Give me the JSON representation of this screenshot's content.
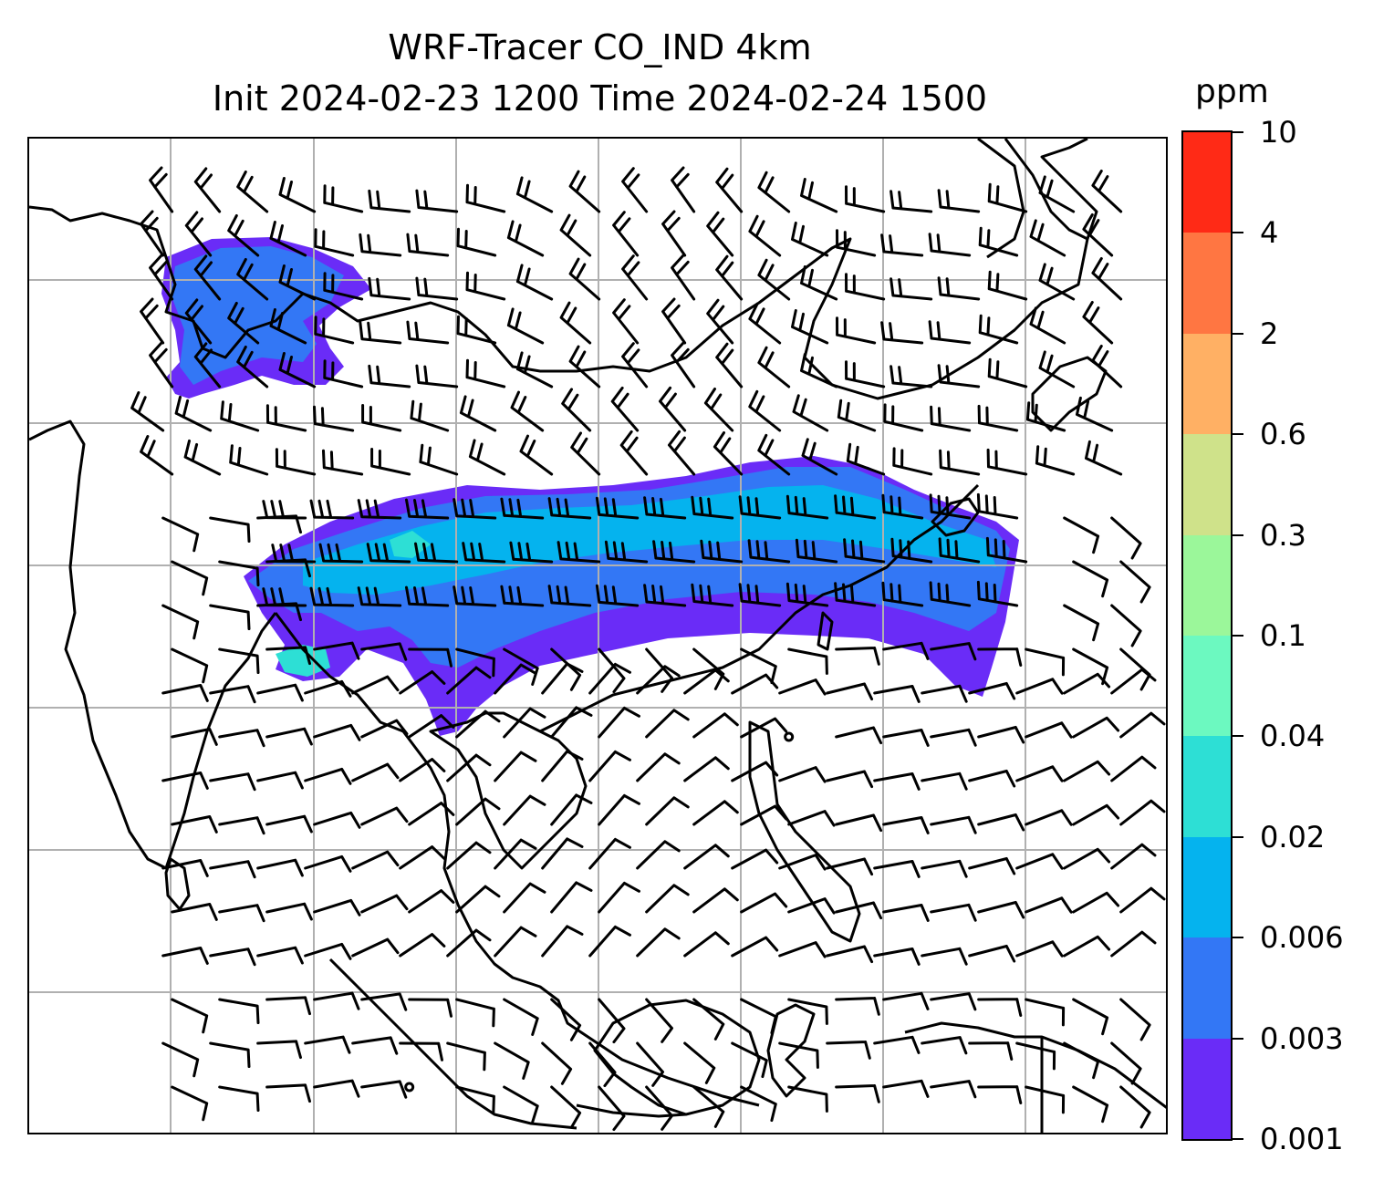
{
  "title": {
    "line1": "WRF-Tracer CO_IND 4km",
    "line2": "Init 2024-02-23 1200 Time 2024-02-24 1500"
  },
  "colorbar": {
    "unit": "ppm",
    "levels": [
      "0.001",
      "0.003",
      "0.006",
      "0.02",
      "0.04",
      "0.1",
      "0.3",
      "0.6",
      "2",
      "4",
      "10"
    ],
    "colors": [
      "#6a2cf7",
      "#3377f5",
      "#05b3ee",
      "#2ddfd5",
      "#6cf9c0",
      "#9bf79a",
      "#cfe28a",
      "#ffb064",
      "#ff7642",
      "#ff2a16"
    ]
  },
  "map": {
    "colors": {
      "background": "#ffffff",
      "coastline": "#000000",
      "gridlines": "#b0b0b0",
      "barbs": "#000000",
      "plume_outer": "#6a2cf7",
      "plume_mid": "#3377f5",
      "plume_core": "#05b3ee",
      "plume_peak": "#2ddfd5"
    }
  }
}
